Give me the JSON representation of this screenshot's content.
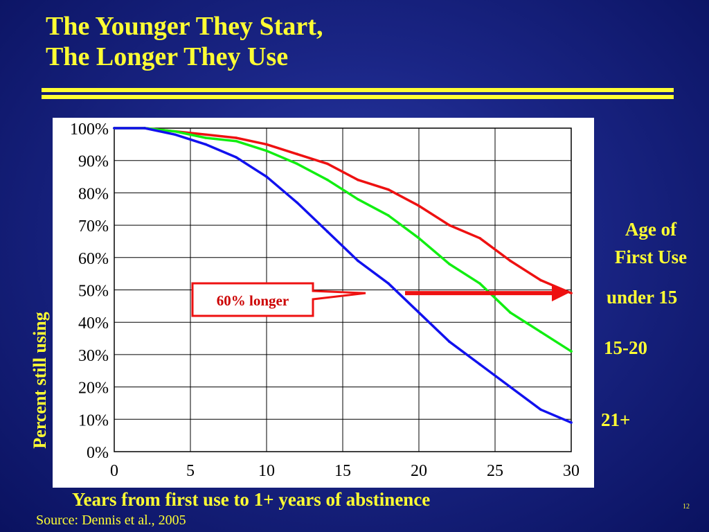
{
  "slide": {
    "title_line1": "The Younger They Start,",
    "title_line2": "The Longer They Use",
    "source": "Source: Dennis et al., 2005",
    "page_number": "12",
    "legend_title_line1": "Age of",
    "legend_title_line2": "First Use"
  },
  "chart_data": {
    "type": "line",
    "xlabel": "Years from first use to 1+ years of abstinence",
    "ylabel": "Percent still using",
    "xlim": [
      0,
      30
    ],
    "ylim": [
      0,
      100
    ],
    "x_ticks": [
      0,
      5,
      10,
      15,
      20,
      25,
      30
    ],
    "y_ticks": [
      0,
      10,
      20,
      30,
      40,
      50,
      60,
      70,
      80,
      90,
      100
    ],
    "y_tick_labels": [
      "0%",
      "10%",
      "20%",
      "30%",
      "40%",
      "50%",
      "60%",
      "70%",
      "80%",
      "90%",
      "100%"
    ],
    "grid": true,
    "x": [
      0,
      2,
      4,
      6,
      8,
      10,
      12,
      14,
      16,
      18,
      20,
      22,
      24,
      26,
      28,
      30
    ],
    "series": [
      {
        "name": "under 15",
        "color": "#ee1111",
        "values": [
          100,
          100,
          99,
          98,
          97,
          95,
          92,
          89,
          84,
          81,
          76,
          70,
          66,
          59,
          53,
          49
        ]
      },
      {
        "name": "15-20",
        "color": "#11ee11",
        "values": [
          100,
          100,
          99,
          97,
          96,
          93,
          89,
          84,
          78,
          73,
          66,
          58,
          52,
          43,
          37,
          31
        ]
      },
      {
        "name": "21+",
        "color": "#1111ee",
        "values": [
          100,
          100,
          98,
          95,
          91,
          85,
          77,
          68,
          59,
          52,
          43,
          34,
          27,
          20,
          13,
          9
        ]
      }
    ],
    "annotation": {
      "text": "60% longer",
      "arrow": {
        "from": [
          19,
          49
        ],
        "to": [
          30,
          49
        ]
      }
    }
  }
}
